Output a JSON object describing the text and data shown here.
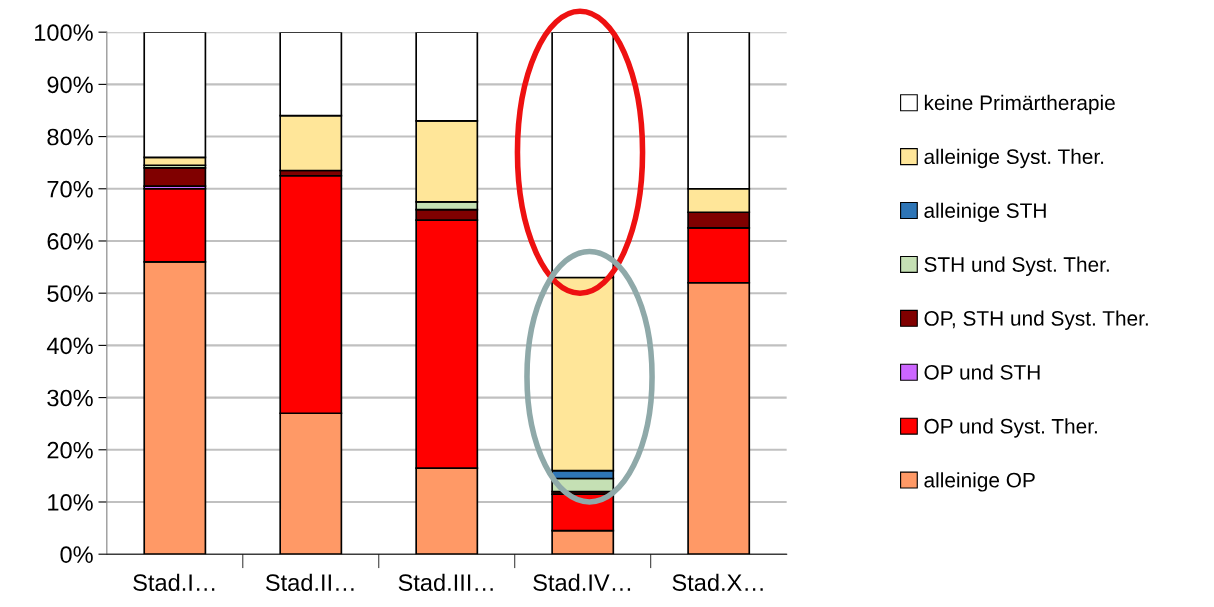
{
  "chart_data": {
    "type": "bar",
    "stacked": true,
    "categories": [
      "Stad.I…",
      "Stad.II…",
      "Stad.III…",
      "Stad.IV…",
      "Stad.X…"
    ],
    "series": [
      {
        "name": "alleinige OP",
        "color": "#ff9966",
        "values": [
          56,
          27,
          16.5,
          4.5,
          52
        ]
      },
      {
        "name": "OP und Syst. Ther.",
        "color": "#ff0000",
        "values": [
          14,
          45.5,
          47.5,
          7,
          10.5
        ]
      },
      {
        "name": "OP und STH",
        "color": "#cc66ff",
        "values": [
          0.5,
          0,
          0,
          0,
          0
        ]
      },
      {
        "name": "OP, STH und Syst. Ther.",
        "color": "#800000",
        "values": [
          3.5,
          1,
          2,
          0.5,
          3
        ]
      },
      {
        "name": "STH und Syst. Ther.",
        "color": "#c5e0b4",
        "values": [
          0.5,
          null,
          1.5,
          2.5,
          0
        ]
      },
      {
        "name": "alleinige STH",
        "color": "#2e75b6",
        "values": [
          null,
          0,
          0,
          1.5,
          0
        ]
      },
      {
        "name": "alleinige Syst. Ther.",
        "color": "#ffe699",
        "values": [
          1.5,
          10.5,
          15.5,
          37,
          4.5
        ]
      },
      {
        "name": "keine Primärtherapie",
        "color": "#ffffff",
        "values": [
          24,
          16,
          17,
          47,
          30
        ]
      }
    ],
    "ylim": [
      0,
      100
    ],
    "yticks": [
      {
        "value": 0,
        "label": "0%"
      },
      {
        "value": 10,
        "label": "10%"
      },
      {
        "value": 20,
        "label": "20%"
      },
      {
        "value": 30,
        "label": "30%"
      },
      {
        "value": 40,
        "label": "40%"
      },
      {
        "value": 50,
        "label": "50%"
      },
      {
        "value": 60,
        "label": "60%"
      },
      {
        "value": 70,
        "label": "70%"
      },
      {
        "value": 80,
        "label": "80%"
      },
      {
        "value": 90,
        "label": "90%"
      },
      {
        "value": 100,
        "label": "100%"
      }
    ],
    "grid": "y",
    "legend": "right"
  }
}
